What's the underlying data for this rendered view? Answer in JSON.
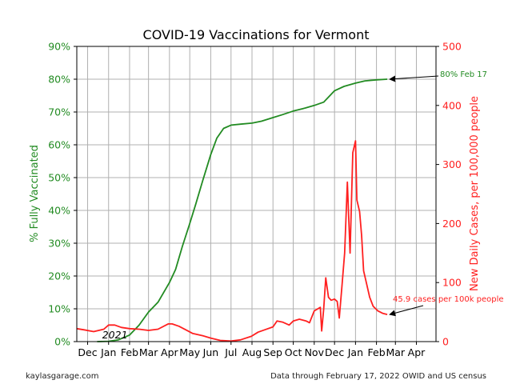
{
  "chart_data": {
    "type": "line",
    "title": "COVID-19 Vaccinations for Vermont",
    "ylabel_left": "% Fully Vaccinated",
    "ylabel_right": "New Daily Cases, per 100,000 people",
    "x_range": [
      "2020-11-15",
      "2022-04-30"
    ],
    "ylim_left": [
      0,
      90
    ],
    "ylim_right": [
      0,
      500
    ],
    "grid": true,
    "x_ticks": [
      {
        "date": "2020-12-01",
        "label": "Dec"
      },
      {
        "date": "2021-01-01",
        "label": "Jan"
      },
      {
        "date": "2021-02-01",
        "label": "Feb"
      },
      {
        "date": "2021-03-01",
        "label": "Mar"
      },
      {
        "date": "2021-04-01",
        "label": "Apr"
      },
      {
        "date": "2021-05-01",
        "label": "May"
      },
      {
        "date": "2021-06-01",
        "label": "Jun"
      },
      {
        "date": "2021-07-01",
        "label": "Jul"
      },
      {
        "date": "2021-08-01",
        "label": "Aug"
      },
      {
        "date": "2021-09-01",
        "label": "Sep"
      },
      {
        "date": "2021-10-01",
        "label": "Oct"
      },
      {
        "date": "2021-11-01",
        "label": "Nov"
      },
      {
        "date": "2021-12-01",
        "label": "Dec"
      },
      {
        "date": "2022-01-01",
        "label": "Jan"
      },
      {
        "date": "2022-02-01",
        "label": "Feb"
      },
      {
        "date": "2022-03-01",
        "label": "Mar"
      },
      {
        "date": "2022-04-01",
        "label": "Apr"
      }
    ],
    "y_ticks_left": [
      "0%",
      "10%",
      "20%",
      "30%",
      "40%",
      "50%",
      "60%",
      "70%",
      "80%",
      "90%"
    ],
    "y_ticks_right": [
      "0",
      "100",
      "200",
      "300",
      "400",
      "500"
    ],
    "year_label": {
      "text": "2021",
      "date": "2021-01-01"
    },
    "series": [
      {
        "axis": "left",
        "color": "#228b22",
        "points": [
          [
            "2020-12-15",
            0
          ],
          [
            "2021-01-01",
            0.1
          ],
          [
            "2021-01-15",
            0.5
          ],
          [
            "2021-02-01",
            2
          ],
          [
            "2021-02-15",
            5
          ],
          [
            "2021-03-01",
            9
          ],
          [
            "2021-03-15",
            12
          ],
          [
            "2021-04-01",
            18
          ],
          [
            "2021-04-10",
            22
          ],
          [
            "2021-04-20",
            29
          ],
          [
            "2021-05-01",
            36
          ],
          [
            "2021-05-10",
            42
          ],
          [
            "2021-05-20",
            49
          ],
          [
            "2021-06-01",
            57
          ],
          [
            "2021-06-10",
            62
          ],
          [
            "2021-06-20",
            65
          ],
          [
            "2021-07-01",
            66
          ],
          [
            "2021-07-15",
            66.3
          ],
          [
            "2021-08-01",
            66.6
          ],
          [
            "2021-08-15",
            67.2
          ],
          [
            "2021-09-01",
            68.3
          ],
          [
            "2021-09-15",
            69.2
          ],
          [
            "2021-10-01",
            70.3
          ],
          [
            "2021-10-15",
            71
          ],
          [
            "2021-11-01",
            72
          ],
          [
            "2021-11-15",
            73
          ],
          [
            "2021-12-01",
            76.5
          ],
          [
            "2021-12-15",
            77.8
          ],
          [
            "2022-01-01",
            78.8
          ],
          [
            "2022-01-15",
            79.5
          ],
          [
            "2022-02-01",
            79.8
          ],
          [
            "2022-02-17",
            80
          ]
        ]
      },
      {
        "axis": "right",
        "color": "#ff2020",
        "points": [
          [
            "2020-11-15",
            22
          ],
          [
            "2020-11-25",
            20
          ],
          [
            "2020-12-10",
            17
          ],
          [
            "2020-12-25",
            21
          ],
          [
            "2021-01-01",
            28
          ],
          [
            "2021-01-10",
            28
          ],
          [
            "2021-01-20",
            24
          ],
          [
            "2021-02-01",
            22
          ],
          [
            "2021-02-15",
            21
          ],
          [
            "2021-03-01",
            19
          ],
          [
            "2021-03-15",
            21
          ],
          [
            "2021-03-30",
            30
          ],
          [
            "2021-04-05",
            30
          ],
          [
            "2021-04-15",
            26
          ],
          [
            "2021-04-25",
            20
          ],
          [
            "2021-05-05",
            14
          ],
          [
            "2021-05-20",
            10
          ],
          [
            "2021-06-01",
            6
          ],
          [
            "2021-06-15",
            2
          ],
          [
            "2021-07-01",
            1
          ],
          [
            "2021-07-15",
            3
          ],
          [
            "2021-07-31",
            9
          ],
          [
            "2021-08-10",
            16
          ],
          [
            "2021-08-20",
            20
          ],
          [
            "2021-09-01",
            25
          ],
          [
            "2021-09-07",
            35
          ],
          [
            "2021-09-15",
            33
          ],
          [
            "2021-09-25",
            28
          ],
          [
            "2021-10-01",
            35
          ],
          [
            "2021-10-10",
            38
          ],
          [
            "2021-10-20",
            35
          ],
          [
            "2021-10-25",
            32
          ],
          [
            "2021-11-01",
            52
          ],
          [
            "2021-11-10",
            58
          ],
          [
            "2021-11-12",
            18
          ],
          [
            "2021-11-15",
            55
          ],
          [
            "2021-11-18",
            108
          ],
          [
            "2021-11-22",
            75
          ],
          [
            "2021-11-26",
            70
          ],
          [
            "2021-12-01",
            72
          ],
          [
            "2021-12-05",
            68
          ],
          [
            "2021-12-08",
            40
          ],
          [
            "2021-12-12",
            95
          ],
          [
            "2021-12-16",
            150
          ],
          [
            "2021-12-20",
            270
          ],
          [
            "2021-12-24",
            150
          ],
          [
            "2021-12-28",
            320
          ],
          [
            "2022-01-01",
            340
          ],
          [
            "2022-01-03",
            240
          ],
          [
            "2022-01-07",
            220
          ],
          [
            "2022-01-10",
            180
          ],
          [
            "2022-01-13",
            120
          ],
          [
            "2022-01-17",
            100
          ],
          [
            "2022-01-22",
            75
          ],
          [
            "2022-01-27",
            60
          ],
          [
            "2022-02-03",
            52
          ],
          [
            "2022-02-10",
            48
          ],
          [
            "2022-02-17",
            45.9
          ]
        ]
      }
    ],
    "annotations": [
      {
        "text": "80% Feb 17",
        "axis": "left",
        "point": [
          "2022-02-17",
          80
        ],
        "color": "#228b22"
      },
      {
        "text": "45.9 cases per 100k people",
        "axis": "right",
        "point": [
          "2022-02-17",
          45.9
        ],
        "color": "#ff2020"
      }
    ]
  },
  "footer": {
    "left": "kaylasgarage.com",
    "right": "Data through February 17, 2022 OWID and US census"
  }
}
